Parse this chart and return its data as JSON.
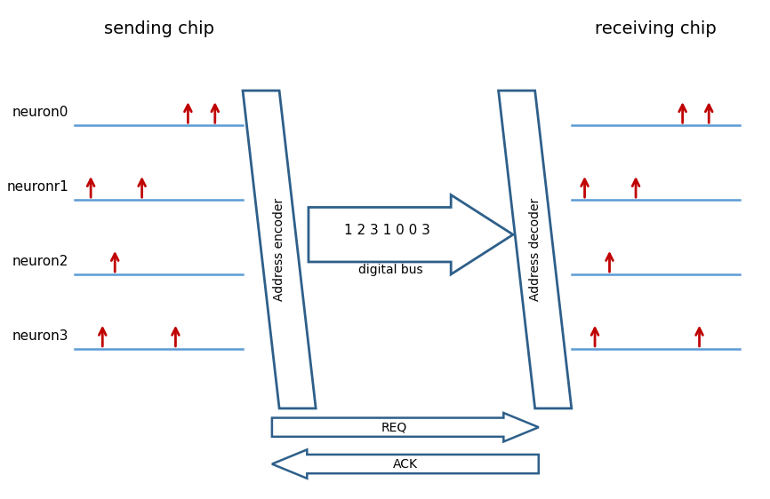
{
  "background_color": "#ffffff",
  "title_fontsize": 14,
  "label_fontsize": 12,
  "neuron_fontsize": 11,
  "bus_text": "1 2 3 1 0 0 3",
  "digital_bus_label": "digital bus",
  "req_label": "REQ",
  "ack_label": "ACK",
  "sending_chip_label": "sending chip",
  "receiving_chip_label": "receiving chip",
  "encoder_label": "Address encoder",
  "decoder_label": "Address decoder",
  "neurons_left": [
    "neuron0",
    "neuronr1",
    "neuron2",
    "neuron3"
  ],
  "neuron_color": "#5b9bd5",
  "arrow_color": "#c00000",
  "box_color": "#2e5f8a",
  "bus_arrow_color": "#2e5f8a",
  "req_ack_color": "#2e5f8a"
}
